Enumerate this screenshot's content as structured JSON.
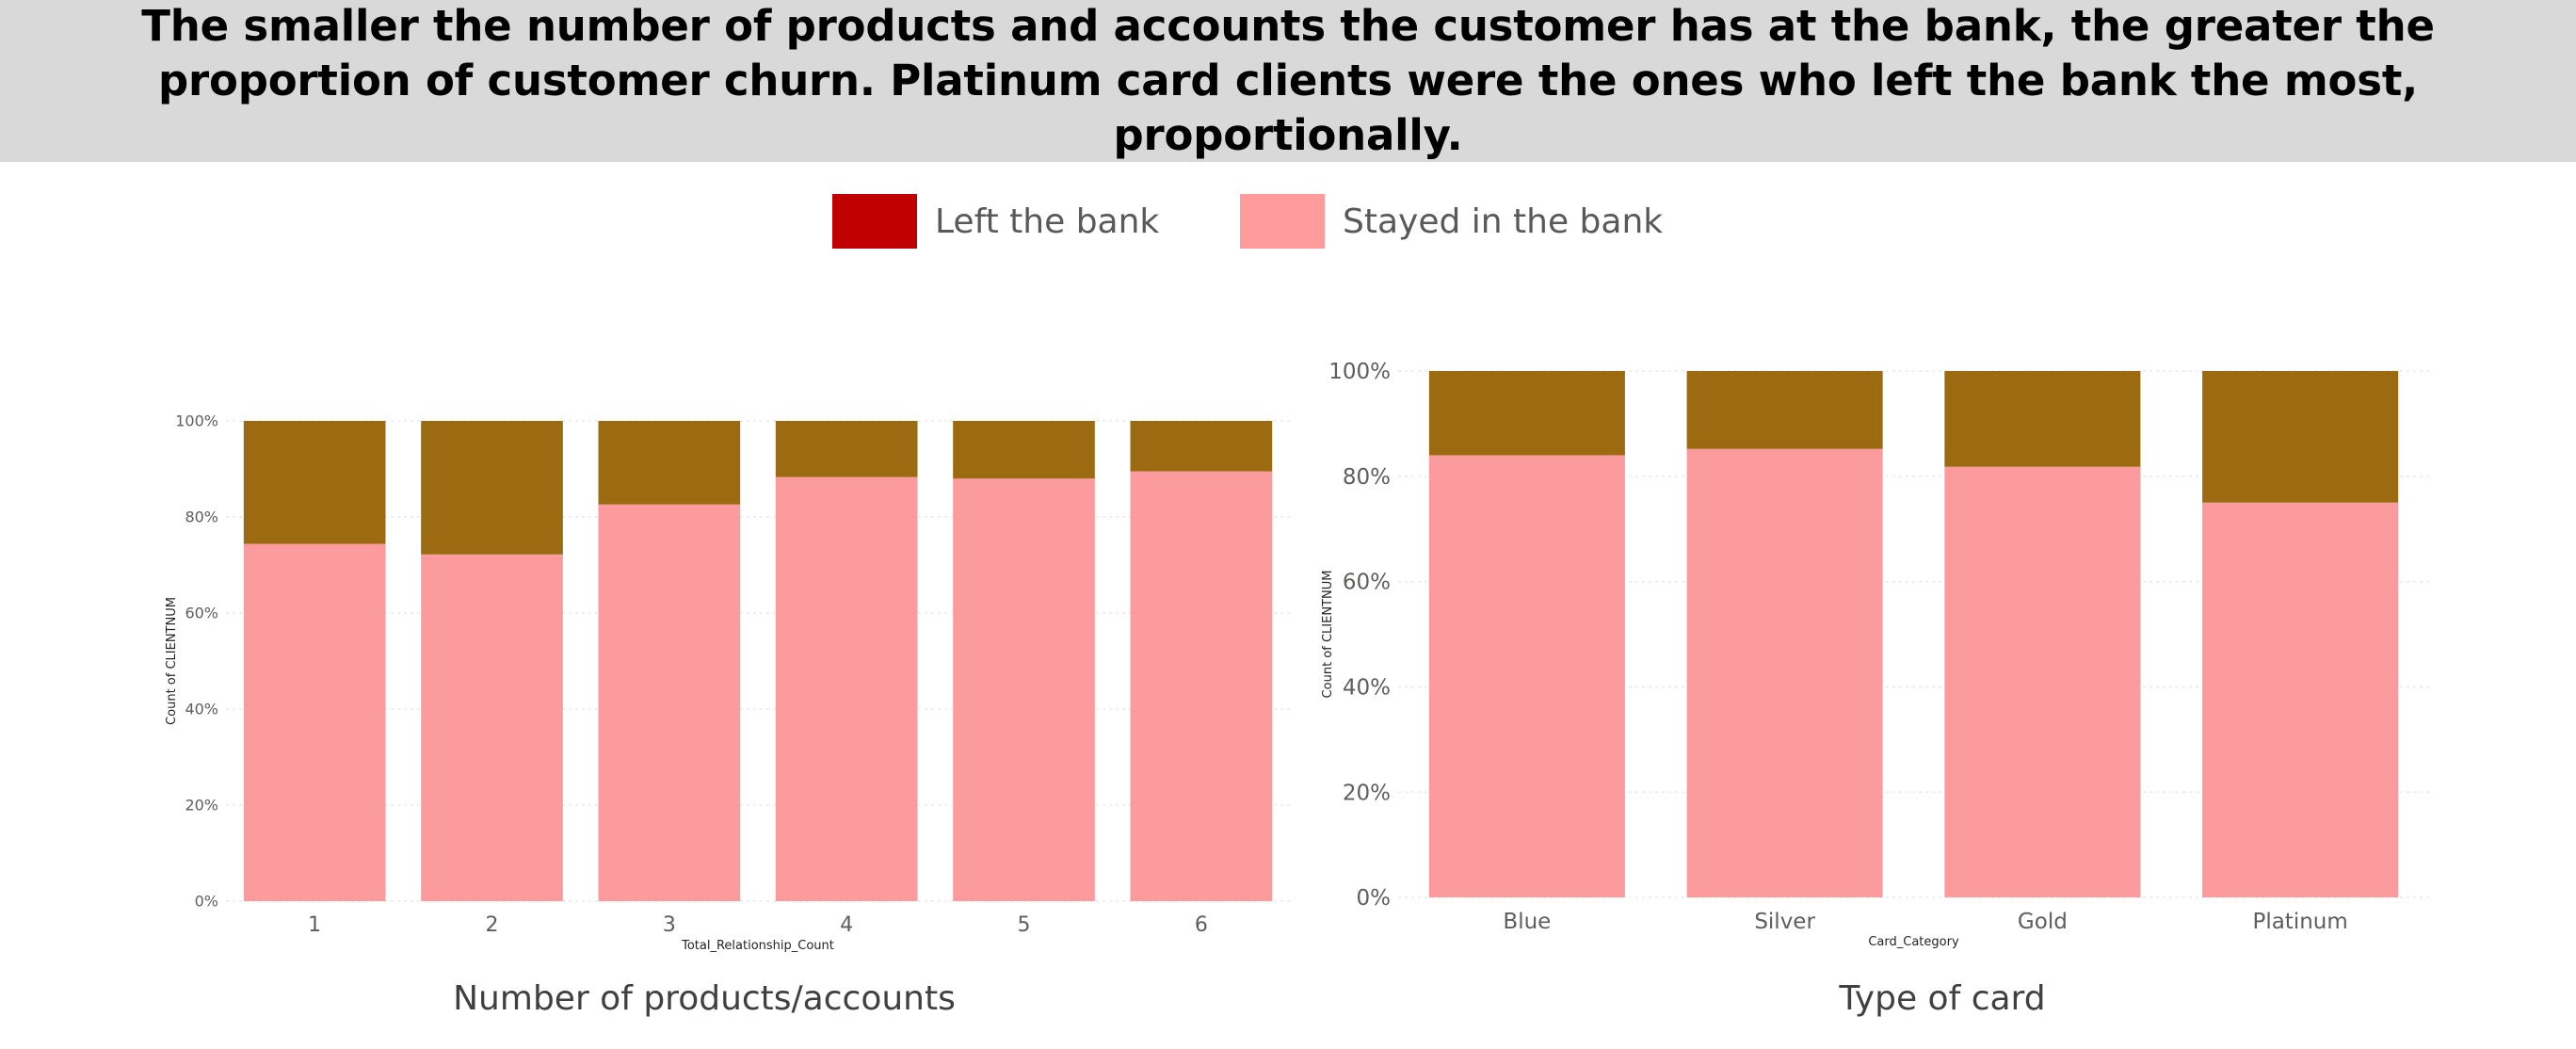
{
  "headline": "The smaller the number of products and accounts the customer has at the bank, the greater the proportion of customer churn. Platinum card clients were the ones who left the bank the most, proportionally.",
  "legend": {
    "items": [
      {
        "label": "Left the bank",
        "color": "#C00000"
      },
      {
        "label": "Stayed in the bank",
        "color": "#FF9B9B"
      }
    ]
  },
  "colors": {
    "left_bar": "#9C6B11",
    "stayed_bar": "#FB9B9D",
    "axis_text": "#605E5C",
    "gridline": "#E8E8E8"
  },
  "captions": {
    "left_chart": "Number of products/accounts",
    "right_chart": "Type of card"
  },
  "chart_data": [
    {
      "type": "bar",
      "stacked": "100%",
      "categories": [
        "1",
        "2",
        "3",
        "4",
        "5",
        "6"
      ],
      "series": [
        {
          "name": "Stayed in the bank",
          "values": [
            74.4,
            72.2,
            82.6,
            88.3,
            88.0,
            89.5
          ]
        },
        {
          "name": "Left the bank",
          "values": [
            25.6,
            27.8,
            17.4,
            11.7,
            12.0,
            10.5
          ]
        }
      ],
      "xlabel": "Total_Relationship_Count",
      "ylabel": "Count of CLIENTNUM",
      "ylim": [
        0,
        100
      ],
      "yticks": [
        "0%",
        "20%",
        "40%",
        "60%",
        "80%",
        "100%"
      ],
      "grid": true
    },
    {
      "type": "bar",
      "stacked": "100%",
      "categories": [
        "Blue",
        "Silver",
        "Gold",
        "Platinum"
      ],
      "series": [
        {
          "name": "Stayed in the bank",
          "values": [
            84.0,
            85.2,
            81.8,
            75.0
          ]
        },
        {
          "name": "Left the bank",
          "values": [
            16.0,
            14.8,
            18.2,
            25.0
          ]
        }
      ],
      "xlabel": "Card_Category",
      "ylabel": "Count of CLIENTNUM",
      "ylim": [
        0,
        100
      ],
      "yticks": [
        "0%",
        "20%",
        "40%",
        "60%",
        "80%",
        "100%"
      ],
      "grid": true
    }
  ]
}
